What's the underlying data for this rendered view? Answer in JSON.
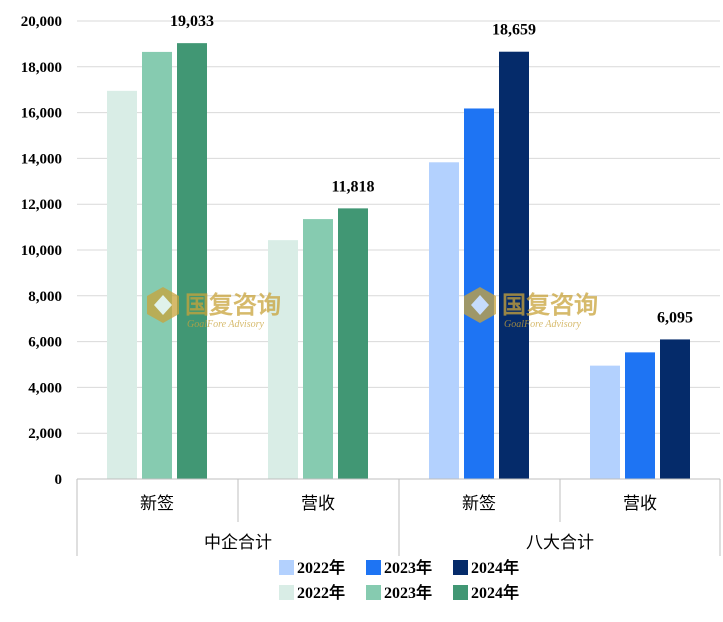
{
  "chart_data": {
    "type": "bar",
    "ylim": [
      0,
      20000
    ],
    "yticks": [
      "0",
      "2,000",
      "4,000",
      "6,000",
      "8,000",
      "10,000",
      "12,000",
      "14,000",
      "16,000",
      "18,000",
      "20,000"
    ],
    "grid": true,
    "groups": [
      {
        "name": "中企合计",
        "categories": [
          "新签",
          "营收"
        ],
        "series": [
          {
            "name": "2022年",
            "color": "#d9ede6",
            "values": [
              16950,
              10430
            ]
          },
          {
            "name": "2023年",
            "color": "#86cbb0",
            "values": [
              18650,
              11350
            ]
          },
          {
            "name": "2024年",
            "color": "#419774",
            "values": [
              19033,
              11818
            ]
          }
        ],
        "data_labels": [
          "19,033",
          "11,818"
        ]
      },
      {
        "name": "八大合计",
        "categories": [
          "新签",
          "营收"
        ],
        "series": [
          {
            "name": "2022年",
            "color": "#b3d1fe",
            "values": [
              13830,
              4950
            ]
          },
          {
            "name": "2023年",
            "color": "#1e74f3",
            "values": [
              16180,
              5530
            ]
          },
          {
            "name": "2024年",
            "color": "#052b6a",
            "values": [
              18659,
              6095
            ]
          }
        ],
        "data_labels": [
          "18,659",
          "6,095"
        ]
      }
    ],
    "legend_position": "bottom"
  },
  "legend": {
    "row1": [
      {
        "label": "2022年",
        "color": "#b3d1fe"
      },
      {
        "label": "2023年",
        "color": "#1e74f3"
      },
      {
        "label": "2024年",
        "color": "#052b6a"
      }
    ],
    "row2": [
      {
        "label": "2022年",
        "color": "#d9ede6"
      },
      {
        "label": "2023年",
        "color": "#86cbb0"
      },
      {
        "label": "2024年",
        "color": "#419774"
      }
    ]
  },
  "watermark": {
    "text": "国复咨询",
    "subtext": "GoalFore Advisory",
    "icon": "goalfore-logo-icon"
  }
}
